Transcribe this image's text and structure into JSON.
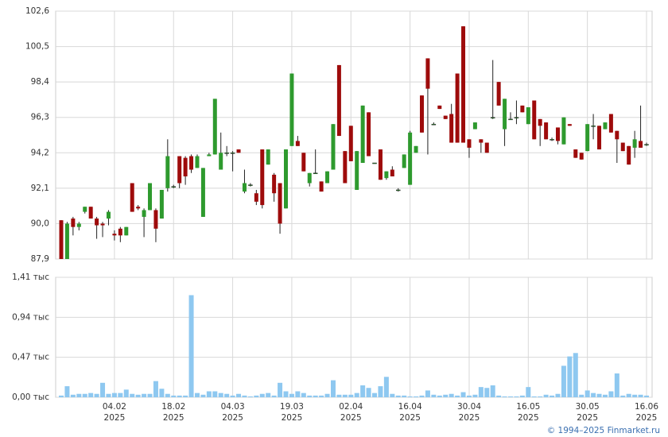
{
  "chart_data": [
    {
      "type": "candlestick",
      "open": [
        90.2,
        87.9,
        90.3,
        89.8,
        90.7,
        91.0,
        90.3,
        90.0,
        90.3,
        89.4,
        89.7,
        89.3,
        92.4,
        91.0,
        90.4,
        90.8,
        90.8,
        90.3,
        92.1,
        92.2,
        94.0,
        93.9,
        94.0,
        93.3,
        90.4,
        94.0,
        94.1,
        93.2,
        94.2,
        94.2,
        94.4,
        91.9,
        92.3,
        91.8,
        94.4,
        93.5,
        92.9,
        92.4,
        90.9,
        94.6,
        94.9,
        94.2,
        92.4,
        93.0,
        92.5,
        92.4,
        93.2,
        99.4,
        94.3,
        95.8,
        92.0,
        93.6,
        96.6,
        93.6,
        94.4,
        92.7,
        93.2,
        92.0,
        93.3,
        92.3,
        94.2,
        97.6,
        99.8,
        95.9,
        97.0,
        96.4,
        96.5,
        98.9,
        101.7,
        95.0,
        95.6,
        95.0,
        94.8,
        96.3,
        98.4,
        95.6,
        96.2,
        96.3,
        97.0,
        95.9,
        97.3,
        96.2,
        96.0,
        95.0,
        95.7,
        94.7,
        95.9,
        94.4,
        94.2,
        94.3,
        95.8,
        95.8,
        95.6,
        96.5,
        95.5,
        94.8,
        94.6,
        94.5,
        94.9,
        94.7
      ],
      "high": [
        90.2,
        90.1,
        90.4,
        90.1,
        91.0,
        91.0,
        90.4,
        90.1,
        90.8,
        89.6,
        89.8,
        89.8,
        92.4,
        91.1,
        90.9,
        92.4,
        90.9,
        92.0,
        95.0,
        92.3,
        94.0,
        94.0,
        94.1,
        94.1,
        93.3,
        94.2,
        97.4,
        95.4,
        94.6,
        94.3,
        94.4,
        93.2,
        92.4,
        92.0,
        94.4,
        94.4,
        93.0,
        92.4,
        94.4,
        98.9,
        95.2,
        94.2,
        93.0,
        94.4,
        92.5,
        93.1,
        95.9,
        99.4,
        94.3,
        95.8,
        94.3,
        97.0,
        96.6,
        93.6,
        94.4,
        93.1,
        93.4,
        92.1,
        94.1,
        95.5,
        94.6,
        97.6,
        99.8,
        96.0,
        97.0,
        96.4,
        97.1,
        98.9,
        101.7,
        95.0,
        96.0,
        95.0,
        94.8,
        99.7,
        98.4,
        97.4,
        96.6,
        97.3,
        97.0,
        96.9,
        97.3,
        96.2,
        96.0,
        95.1,
        95.7,
        96.3,
        95.9,
        94.4,
        94.2,
        95.9,
        96.5,
        95.8,
        96.0,
        96.5,
        95.5,
        94.8,
        94.6,
        95.5,
        97.0,
        94.8
      ],
      "low": [
        87.9,
        87.9,
        89.3,
        89.6,
        90.6,
        90.3,
        89.1,
        89.2,
        89.9,
        89.0,
        88.9,
        89.3,
        90.7,
        90.8,
        89.2,
        90.8,
        88.9,
        90.3,
        91.9,
        92.1,
        92.1,
        92.3,
        93.0,
        93.3,
        90.4,
        94.0,
        94.1,
        93.2,
        94.0,
        93.1,
        94.2,
        91.8,
        92.2,
        91.1,
        90.9,
        93.5,
        91.3,
        89.4,
        90.9,
        94.6,
        94.6,
        93.1,
        92.2,
        93.0,
        91.9,
        92.4,
        93.2,
        95.2,
        92.4,
        93.7,
        92.0,
        93.6,
        94.0,
        93.6,
        92.6,
        92.6,
        92.8,
        91.9,
        93.3,
        92.3,
        94.2,
        95.4,
        94.1,
        95.9,
        96.8,
        96.2,
        94.8,
        94.8,
        94.8,
        93.9,
        95.6,
        94.2,
        94.2,
        96.2,
        97.0,
        94.6,
        96.2,
        95.9,
        96.6,
        95.9,
        95.0,
        94.6,
        95.0,
        94.9,
        94.7,
        94.7,
        95.8,
        93.9,
        93.8,
        94.3,
        95.0,
        94.4,
        95.6,
        95.4,
        93.6,
        94.3,
        93.5,
        93.9,
        94.5,
        94.6
      ],
      "close": [
        87.9,
        90.0,
        89.8,
        90.0,
        91.0,
        90.3,
        89.9,
        89.9,
        90.7,
        89.3,
        89.3,
        89.8,
        90.7,
        90.9,
        90.8,
        92.4,
        89.7,
        92.0,
        94.0,
        92.2,
        92.4,
        92.8,
        93.2,
        94.0,
        93.3,
        94.1,
        97.4,
        94.2,
        94.2,
        94.2,
        94.2,
        92.4,
        92.3,
        91.3,
        91.1,
        94.4,
        91.8,
        90.0,
        94.4,
        98.9,
        94.6,
        93.1,
        93.0,
        93.0,
        91.9,
        93.1,
        95.9,
        95.2,
        92.4,
        93.7,
        94.3,
        97.0,
        94.0,
        93.6,
        92.6,
        93.1,
        92.8,
        92.0,
        94.1,
        95.4,
        94.6,
        95.4,
        98.0,
        95.9,
        96.8,
        96.2,
        94.8,
        94.8,
        94.8,
        94.5,
        96.0,
        94.8,
        94.2,
        96.3,
        97.0,
        97.4,
        96.2,
        96.3,
        96.6,
        96.9,
        95.0,
        95.8,
        95.0,
        95.0,
        94.9,
        96.3,
        95.8,
        93.9,
        93.8,
        95.9,
        95.8,
        94.4,
        96.0,
        95.4,
        95.0,
        94.3,
        93.5,
        95.0,
        94.5,
        94.7
      ],
      "up_color": "#2e9a2e",
      "down_color": "#9e0b0b",
      "ylim": [
        87.9,
        102.6
      ],
      "yticks": [
        {
          "value": 87.9,
          "label": "87,9"
        },
        {
          "value": 90.0,
          "label": "90,0"
        },
        {
          "value": 92.1,
          "label": "92,1"
        },
        {
          "value": 94.2,
          "label": "94,2"
        },
        {
          "value": 96.3,
          "label": "96,3"
        },
        {
          "value": 98.4,
          "label": "98,4"
        },
        {
          "value": 100.5,
          "label": "100,5"
        },
        {
          "value": 102.6,
          "label": "102,6"
        }
      ],
      "grid": true
    },
    {
      "type": "bar",
      "categories": [
        null,
        null,
        null,
        null,
        null,
        null,
        null,
        null,
        null,
        "04.02",
        null,
        null,
        null,
        null,
        null,
        null,
        null,
        null,
        null,
        "18.02",
        null,
        null,
        null,
        null,
        null,
        null,
        null,
        null,
        null,
        "04.03",
        null,
        null,
        null,
        null,
        null,
        null,
        null,
        null,
        null,
        "19.03",
        null,
        null,
        null,
        null,
        null,
        null,
        null,
        null,
        null,
        "02.04",
        null,
        null,
        null,
        null,
        null,
        null,
        null,
        null,
        null,
        "16.04",
        null,
        null,
        null,
        null,
        null,
        null,
        null,
        null,
        null,
        "30.04",
        null,
        null,
        null,
        null,
        null,
        null,
        null,
        null,
        null,
        "16.05",
        null,
        null,
        null,
        null,
        null,
        null,
        null,
        null,
        null,
        "30.05",
        null,
        null,
        null,
        null,
        null,
        null,
        null,
        null,
        null,
        "16.06"
      ],
      "year": "2025",
      "values": [
        0.02,
        0.13,
        0.03,
        0.04,
        0.04,
        0.05,
        0.04,
        0.17,
        0.04,
        0.05,
        0.05,
        0.09,
        0.04,
        0.03,
        0.04,
        0.04,
        0.19,
        0.1,
        0.04,
        0.02,
        0.02,
        0.02,
        1.2,
        0.05,
        0.03,
        0.07,
        0.07,
        0.05,
        0.04,
        0.02,
        0.04,
        0.02,
        0.01,
        0.02,
        0.04,
        0.05,
        0.02,
        0.17,
        0.07,
        0.04,
        0.07,
        0.05,
        0.02,
        0.02,
        0.02,
        0.04,
        0.2,
        0.03,
        0.03,
        0.03,
        0.05,
        0.14,
        0.11,
        0.05,
        0.13,
        0.24,
        0.04,
        0.02,
        0.02,
        0.01,
        0.01,
        0.02,
        0.08,
        0.03,
        0.02,
        0.03,
        0.04,
        0.02,
        0.06,
        0.02,
        0.03,
        0.12,
        0.11,
        0.14,
        0.02,
        0.01,
        0.01,
        0.01,
        0.02,
        0.12,
        0.01,
        0.01,
        0.03,
        0.02,
        0.04,
        0.37,
        0.48,
        0.52,
        0.03,
        0.08,
        0.05,
        0.04,
        0.03,
        0.07,
        0.28,
        0.02,
        0.04,
        0.03,
        0.03,
        0.02
      ],
      "color": "#8ec8f0",
      "ylim": [
        0,
        1.41
      ],
      "yticks": [
        {
          "value": 0,
          "label": "0,00 тыс"
        },
        {
          "value": 0.47,
          "label": "0,47 тыс"
        },
        {
          "value": 0.94,
          "label": "0,94 тыс"
        },
        {
          "value": 1.41,
          "label": "1,41 тыс"
        }
      ],
      "grid": true
    }
  ],
  "footer": "© 1994–2025 Finmarket.ru"
}
